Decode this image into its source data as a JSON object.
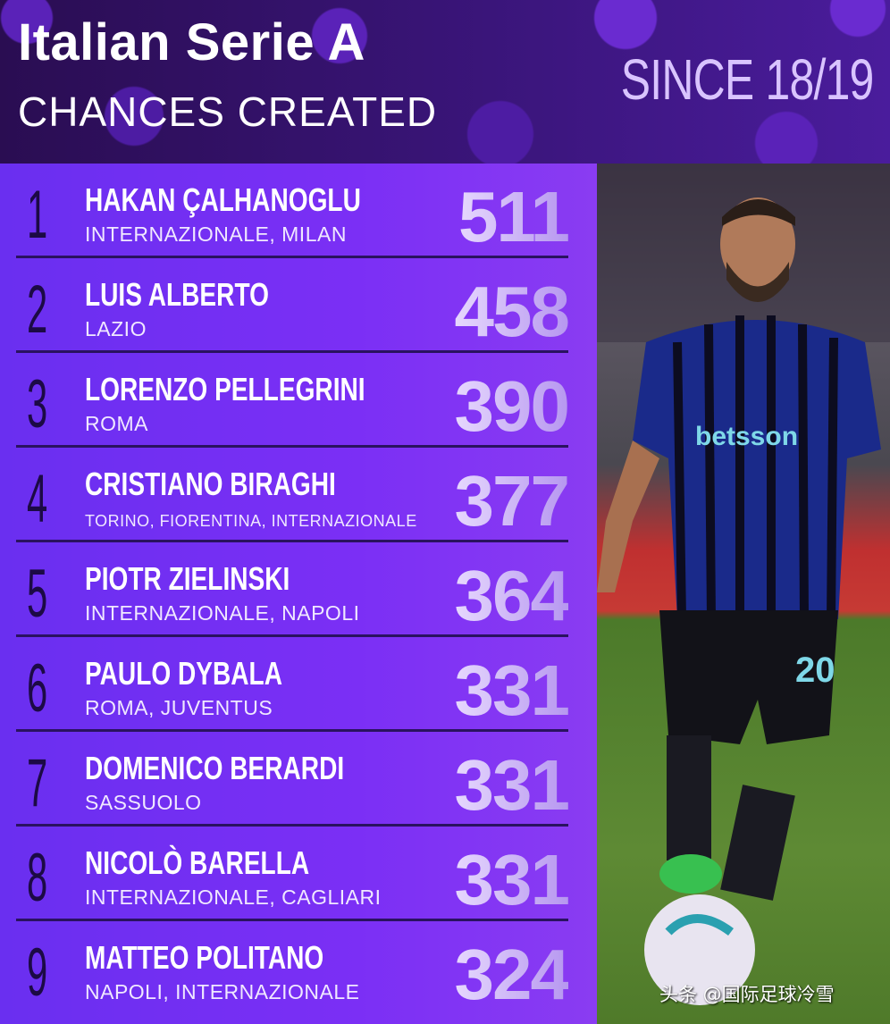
{
  "header": {
    "title": "Italian Serie A",
    "subtitle": "CHANCES CREATED",
    "since": "SINCE 18/19"
  },
  "rows": [
    {
      "rank": "1",
      "name": "HAKAN ÇALHANOGLU",
      "club": "INTERNAZIONALE, MILAN",
      "value": "511"
    },
    {
      "rank": "2",
      "name": "LUIS ALBERTO",
      "club": "LAZIO",
      "value": "458"
    },
    {
      "rank": "3",
      "name": "LORENZO PELLEGRINI",
      "club": "ROMA",
      "value": "390"
    },
    {
      "rank": "4",
      "name": "CRISTIANO BIRAGHI",
      "club": "TORINO, FIORENTINA, INTERNAZIONALE",
      "value": "377"
    },
    {
      "rank": "5",
      "name": "PIOTR ZIELINSKI",
      "club": "INTERNAZIONALE, NAPOLI",
      "value": "364"
    },
    {
      "rank": "6",
      "name": "PAULO DYBALA",
      "club": "ROMA, JUVENTUS",
      "value": "331"
    },
    {
      "rank": "7",
      "name": "DOMENICO BERARDI",
      "club": "SASSUOLO",
      "value": "331"
    },
    {
      "rank": "8",
      "name": "NICOLÒ BARELLA",
      "club": "INTERNAZIONALE, CAGLIARI",
      "value": "331"
    },
    {
      "rank": "9",
      "name": "MATTEO POLITANO",
      "club": "NAPOLI, INTERNAZIONALE",
      "value": "324"
    }
  ],
  "photo": {
    "shirt_sponsor": "betsson",
    "shirt_number": "20"
  },
  "watermark": "头条 @国际足球冷雪",
  "colors": {
    "panel": "#7b2ff5",
    "header": "#3a157a",
    "rank": "#1c0a45"
  }
}
